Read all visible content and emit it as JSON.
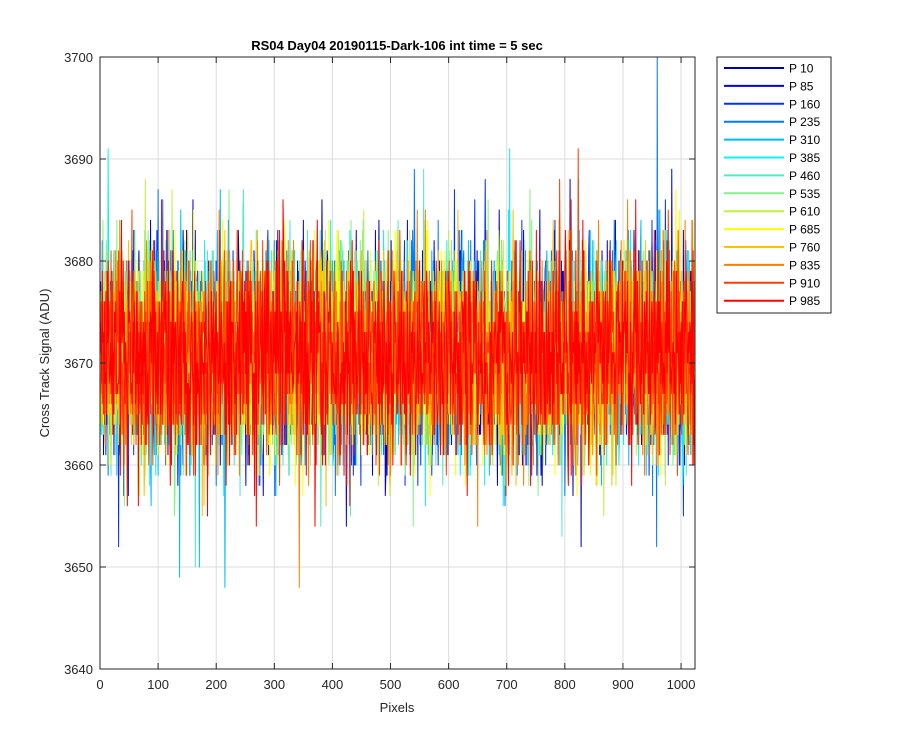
{
  "chart_data": {
    "type": "line",
    "title": "RS04 Day04 20190115-Dark-106 int time = 5 sec",
    "xlabel": "Pixels",
    "ylabel": "Cross Track Signal (ADU)",
    "xlim": [
      0,
      1024
    ],
    "ylim": [
      3640,
      3700
    ],
    "xticks": [
      0,
      100,
      200,
      300,
      400,
      500,
      600,
      700,
      800,
      900,
      1000
    ],
    "yticks": [
      3640,
      3650,
      3660,
      3670,
      3680,
      3690,
      3700
    ],
    "grid": true,
    "legend_position": "outside-right",
    "noise_model": {
      "mean": 3671,
      "std": 5,
      "min": 3641,
      "max": 3700
    },
    "series": [
      {
        "name": "P 10",
        "color": "#0000b0",
        "seed": 11
      },
      {
        "name": "P 85",
        "color": "#0000e6",
        "seed": 23
      },
      {
        "name": "P 160",
        "color": "#0030ff",
        "seed": 37
      },
      {
        "name": "P 235",
        "color": "#0078ff",
        "seed": 41
      },
      {
        "name": "P 310",
        "color": "#00baff",
        "seed": 53
      },
      {
        "name": "P 385",
        "color": "#10f0f0",
        "seed": 67
      },
      {
        "name": "P 460",
        "color": "#55e8c4",
        "seed": 71
      },
      {
        "name": "P 535",
        "color": "#84f28a",
        "seed": 83
      },
      {
        "name": "P 610",
        "color": "#c0f040",
        "seed": 97
      },
      {
        "name": "P 685",
        "color": "#ffff00",
        "seed": 101
      },
      {
        "name": "P 760",
        "color": "#ffc000",
        "seed": 113
      },
      {
        "name": "P 835",
        "color": "#ff7f00",
        "seed": 127
      },
      {
        "name": "P 910",
        "color": "#ff3c00",
        "seed": 131
      },
      {
        "name": "P 985",
        "color": "#ff0000",
        "seed": 139
      }
    ]
  }
}
